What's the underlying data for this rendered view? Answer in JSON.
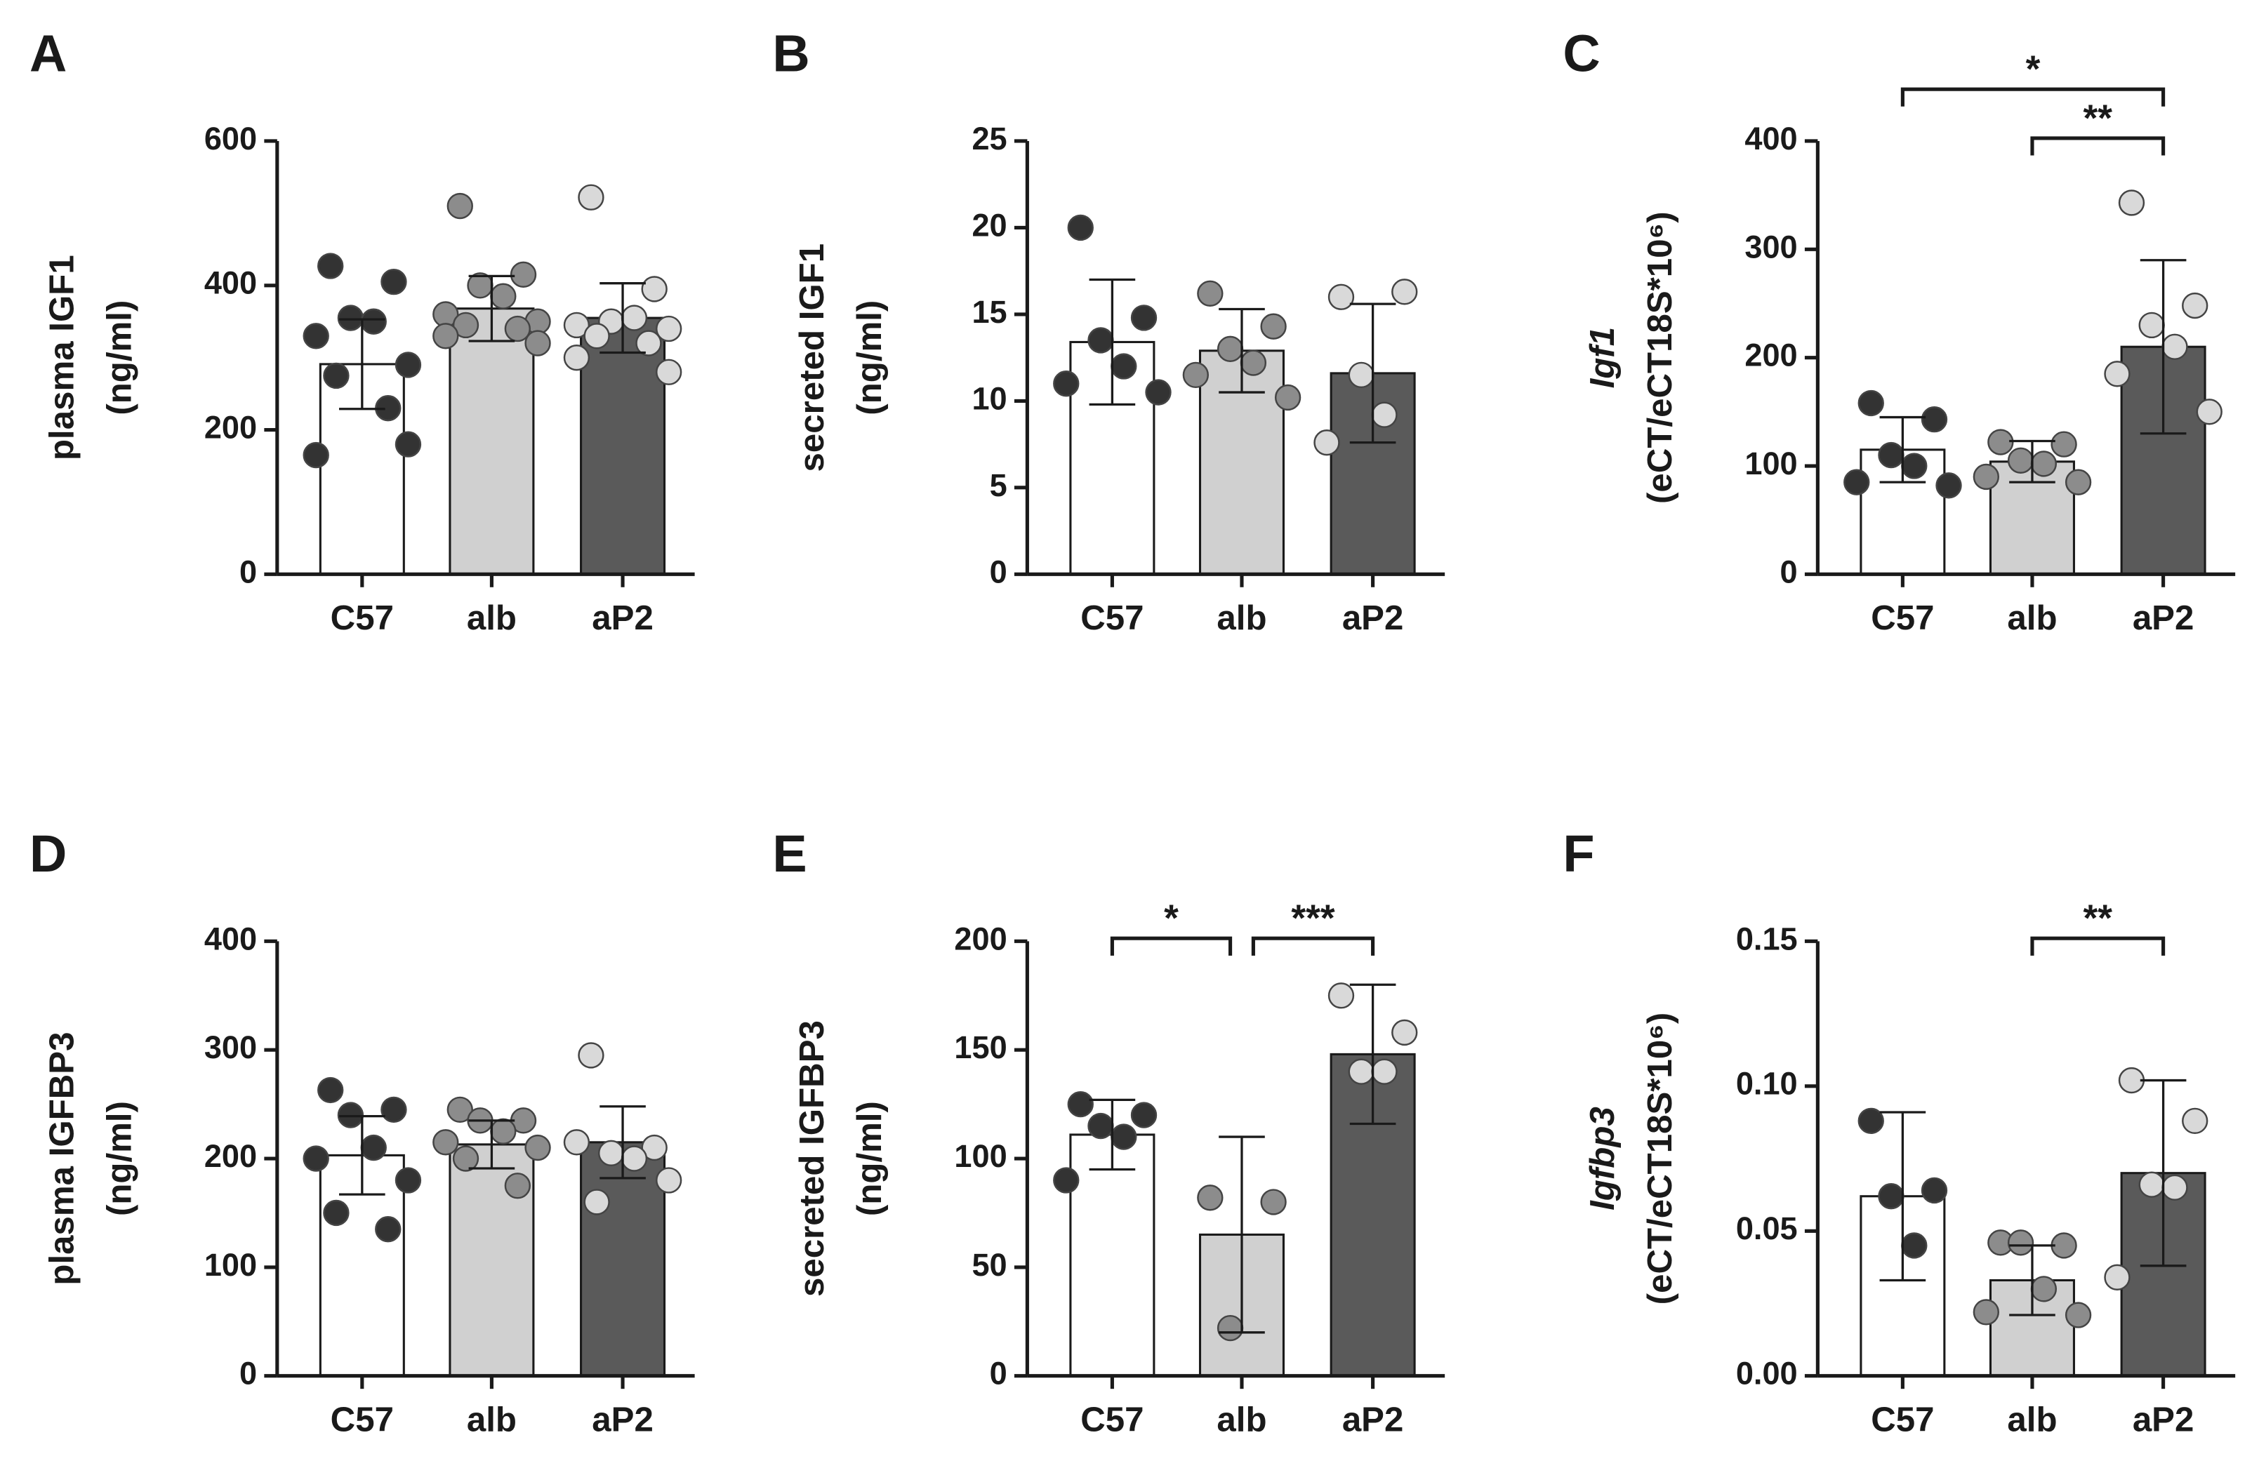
{
  "chart_data": [
    {
      "type": "bar",
      "panel": "A",
      "ylabel": [
        "plasma IGF1",
        "(ng/ml)"
      ],
      "ylabel_italic": false,
      "categories": [
        "C57",
        "alb",
        "aP2"
      ],
      "values": [
        291,
        368,
        355
      ],
      "errors": [
        62,
        45,
        48
      ],
      "points": [
        [
          427,
          405,
          355,
          350,
          330,
          290,
          275,
          230,
          165,
          180
        ],
        [
          510,
          415,
          400,
          385,
          360,
          350,
          345,
          340,
          330,
          320
        ],
        [
          522,
          395,
          350,
          355,
          345,
          340,
          330,
          320,
          300,
          280
        ]
      ],
      "bar_colors": [
        "#ffffff",
        "#d0d0d0",
        "#5a5a5a"
      ],
      "point_colors": [
        "#333333",
        "#8c8c8c",
        "#d9d9d9"
      ],
      "ylim": [
        0,
        600
      ],
      "yticks": [
        0,
        200,
        400,
        600
      ],
      "significance": []
    },
    {
      "type": "bar",
      "panel": "B",
      "ylabel": [
        "secreted IGF1",
        "(ng/ml)"
      ],
      "ylabel_italic": false,
      "categories": [
        "C57",
        "alb",
        "aP2"
      ],
      "values": [
        13.4,
        12.9,
        11.6
      ],
      "errors": [
        3.6,
        2.4,
        4
      ],
      "points": [
        [
          20,
          14.8,
          13.5,
          12,
          11,
          10.5
        ],
        [
          16.2,
          14.3,
          13,
          12.2,
          11.5,
          10.2
        ],
        [
          16,
          16.3,
          11.5,
          9.2,
          7.6
        ]
      ],
      "bar_colors": [
        "#ffffff",
        "#d0d0d0",
        "#5a5a5a"
      ],
      "point_colors": [
        "#333333",
        "#8c8c8c",
        "#d9d9d9"
      ],
      "ylim": [
        0,
        25
      ],
      "yticks": [
        0,
        5,
        10,
        15,
        20,
        25
      ],
      "significance": []
    },
    {
      "type": "bar",
      "panel": "C",
      "ylabel": [
        "Igf1",
        "(eCT/eCT18S*10⁶)"
      ],
      "ylabel_italic": true,
      "categories": [
        "C57",
        "alb",
        "aP2"
      ],
      "values": [
        115,
        104,
        210
      ],
      "errors": [
        30,
        19,
        80
      ],
      "points": [
        [
          158,
          143,
          110,
          100,
          85,
          82
        ],
        [
          122,
          120,
          105,
          102,
          90,
          85
        ],
        [
          343,
          248,
          230,
          210,
          185,
          150
        ]
      ],
      "bar_colors": [
        "#ffffff",
        "#d0d0d0",
        "#5a5a5a"
      ],
      "point_colors": [
        "#333333",
        "#8c8c8c",
        "#d9d9d9"
      ],
      "ylim": [
        0,
        400
      ],
      "yticks": [
        0,
        100,
        200,
        300,
        400
      ],
      "significance": [
        {
          "from": 0,
          "to": 2,
          "label": "*"
        },
        {
          "from": 1,
          "to": 2,
          "label": "**"
        }
      ]
    },
    {
      "type": "bar",
      "panel": "D",
      "ylabel": [
        "plasma IGFBP3",
        "(ng/ml)"
      ],
      "ylabel_italic": false,
      "categories": [
        "C57",
        "alb",
        "aP2"
      ],
      "values": [
        203,
        213,
        215
      ],
      "errors": [
        36,
        22,
        33
      ],
      "points": [
        [
          263,
          245,
          240,
          210,
          200,
          180,
          150,
          135
        ],
        [
          245,
          235,
          235,
          225,
          215,
          210,
          200,
          175
        ],
        [
          295,
          210,
          205,
          200,
          215,
          180,
          160
        ]
      ],
      "bar_colors": [
        "#ffffff",
        "#d0d0d0",
        "#5a5a5a"
      ],
      "point_colors": [
        "#333333",
        "#8c8c8c",
        "#d9d9d9"
      ],
      "ylim": [
        0,
        400
      ],
      "yticks": [
        0,
        100,
        200,
        300,
        400
      ],
      "significance": []
    },
    {
      "type": "bar",
      "panel": "E",
      "ylabel": [
        "secreted IGFBP3",
        "(ng/ml)"
      ],
      "ylabel_italic": false,
      "categories": [
        "C57",
        "alb",
        "aP2"
      ],
      "values": [
        111,
        65,
        148
      ],
      "errors": [
        16,
        45,
        32
      ],
      "points": [
        [
          125,
          120,
          115,
          110,
          90
        ],
        [
          82,
          80,
          22
        ],
        [
          175,
          158,
          140,
          140
        ]
      ],
      "bar_colors": [
        "#ffffff",
        "#d0d0d0",
        "#5a5a5a"
      ],
      "point_colors": [
        "#333333",
        "#8c8c8c",
        "#d9d9d9"
      ],
      "ylim": [
        0,
        200
      ],
      "yticks": [
        0,
        50,
        100,
        150,
        200
      ],
      "significance": [
        {
          "from": 0,
          "to": 1,
          "label": "*"
        },
        {
          "from": 1,
          "to": 2,
          "label": "***"
        }
      ]
    },
    {
      "type": "bar",
      "panel": "F",
      "ylabel": [
        "Igfbp3",
        "(eCT/eCT18S*10⁶)"
      ],
      "ylabel_italic": true,
      "categories": [
        "C57",
        "alb",
        "aP2"
      ],
      "values": [
        0.062,
        0.033,
        0.07
      ],
      "errors": [
        0.029,
        0.012,
        0.032
      ],
      "points": [
        [
          0.088,
          0.064,
          0.062,
          0.045
        ],
        [
          0.046,
          0.045,
          0.046,
          0.03,
          0.022,
          0.021
        ],
        [
          0.102,
          0.088,
          0.066,
          0.065,
          0.034
        ]
      ],
      "bar_colors": [
        "#ffffff",
        "#d0d0d0",
        "#5a5a5a"
      ],
      "point_colors": [
        "#333333",
        "#8c8c8c",
        "#d9d9d9"
      ],
      "ylim": [
        0,
        0.15
      ],
      "yticks": [
        {
          "value": 0,
          "label": "0.00"
        },
        {
          "value": 0.05,
          "label": "0.05"
        },
        {
          "value": 0.1,
          "label": "0.10"
        },
        {
          "value": 0.15,
          "label": "0.15"
        }
      ],
      "significance": [
        {
          "from": 1,
          "to": 2,
          "label": "**"
        }
      ]
    }
  ]
}
